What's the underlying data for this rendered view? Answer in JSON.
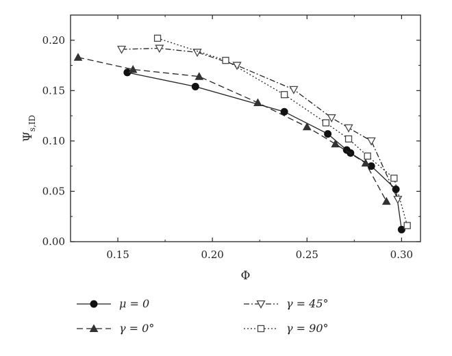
{
  "chart_data": {
    "type": "line",
    "xlabel": "Φ",
    "ylabel": "Ψ",
    "ylabel_sub": "s,ID",
    "xlim": [
      0.125,
      0.31
    ],
    "ylim": [
      0.0,
      0.225
    ],
    "xticks": [
      0.15,
      0.2,
      0.25,
      0.3
    ],
    "xtick_labels": [
      "0.15",
      "0.20",
      "0.25",
      "0.30"
    ],
    "yticks": [
      0.0,
      0.05,
      0.1,
      0.15,
      0.2
    ],
    "ytick_labels": [
      "0.00",
      "0.05",
      "0.10",
      "0.15",
      "0.20"
    ],
    "grid": false,
    "legend_position": "bottom",
    "series": [
      {
        "name": "μ = 0",
        "line_style": "solid",
        "marker": "filled-circle",
        "x": [
          0.155,
          0.191,
          0.238,
          0.261,
          0.271,
          0.273,
          0.284,
          0.297,
          0.3
        ],
        "y": [
          0.168,
          0.154,
          0.129,
          0.107,
          0.091,
          0.088,
          0.075,
          0.052,
          0.012
        ]
      },
      {
        "name": "γ = 0°",
        "line_style": "dashed",
        "marker": "filled-triangle-up",
        "x": [
          0.129,
          0.158,
          0.193,
          0.224,
          0.25,
          0.265,
          0.281,
          0.292
        ],
        "y": [
          0.183,
          0.171,
          0.164,
          0.138,
          0.114,
          0.097,
          0.078,
          0.04
        ]
      },
      {
        "name": "γ = 45°",
        "line_style": "dash-dot",
        "marker": "open-triangle-down",
        "x": [
          0.152,
          0.172,
          0.192,
          0.213,
          0.243,
          0.263,
          0.272,
          0.284,
          0.298
        ],
        "y": [
          0.191,
          0.192,
          0.188,
          0.175,
          0.151,
          0.123,
          0.113,
          0.1,
          0.042
        ]
      },
      {
        "name": "γ = 90°",
        "line_style": "dotted",
        "marker": "open-square",
        "x": [
          0.171,
          0.207,
          0.238,
          0.26,
          0.272,
          0.282,
          0.296,
          0.303
        ],
        "y": [
          0.202,
          0.18,
          0.146,
          0.118,
          0.102,
          0.085,
          0.063,
          0.016
        ]
      }
    ]
  }
}
